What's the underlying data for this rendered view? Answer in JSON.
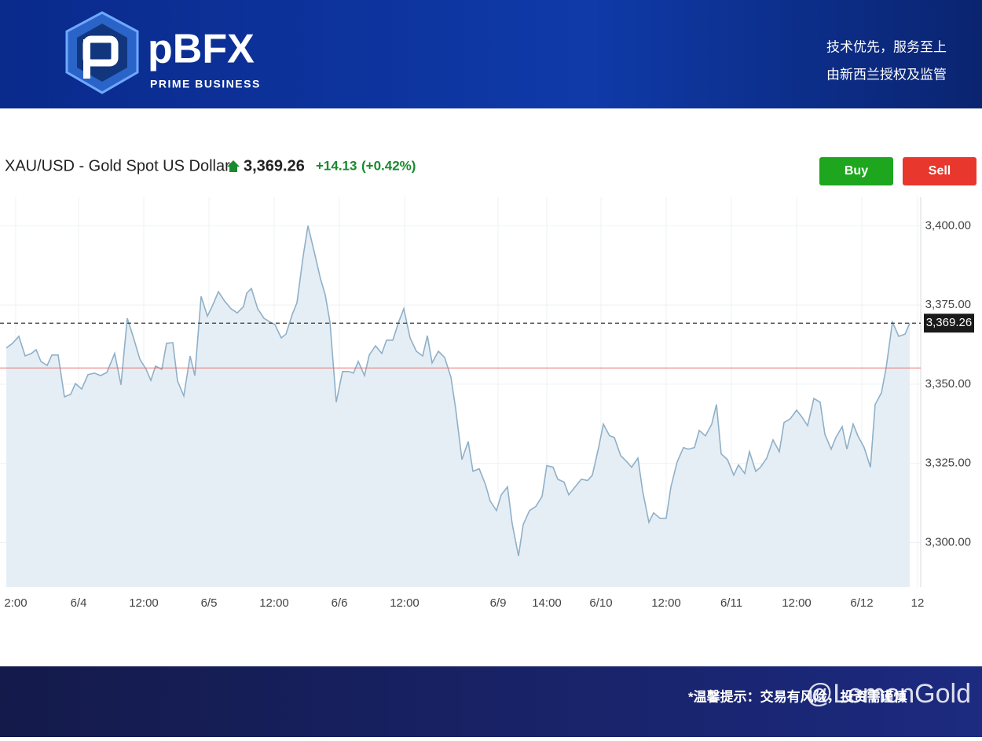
{
  "header": {
    "brand": "pBFX",
    "tagline": "PRIME BUSINESS",
    "slogan": "技术优先，服务至上",
    "regulation": "由新西兰授权及监管"
  },
  "instrument": {
    "name": "XAU/USD - Gold Spot US Dollar",
    "price": "3,369.26",
    "change": "+14.13",
    "change_pct": "(+0.42%)"
  },
  "actions": {
    "buy": "Buy",
    "sell": "Sell"
  },
  "footer": {
    "notice": "*温馨提示：交易有风险，投资需谨慎",
    "watermark": "@LemonGold"
  },
  "chart_data": {
    "type": "area",
    "color": "#8fb0c8",
    "fill": "#e6eef5",
    "x": [
      8,
      16,
      24,
      32,
      40,
      46,
      52,
      60,
      66,
      74,
      82,
      90,
      96,
      104,
      112,
      120,
      128,
      136,
      146,
      154,
      162,
      170,
      178,
      186,
      192,
      198,
      206,
      212,
      220,
      226,
      234,
      242,
      248,
      256,
      264,
      270,
      278,
      286,
      294,
      302,
      310,
      314,
      320,
      328,
      336,
      344,
      350,
      358,
      364,
      372,
      378,
      386,
      392,
      400,
      408,
      414,
      420,
      428,
      436,
      444,
      450,
      456,
      464,
      470,
      478,
      486,
      492,
      500,
      508,
      514,
      522,
      530,
      538,
      544,
      550,
      558,
      566,
      574,
      580,
      588,
      596,
      602,
      610,
      618,
      624,
      632,
      638,
      646,
      652,
      660,
      666,
      674,
      682,
      690,
      696,
      704,
      710,
      718,
      724,
      732,
      740,
      748,
      754,
      762,
      768,
      776,
      782,
      790,
      798,
      804,
      812,
      818,
      826,
      832,
      840,
      848,
      854,
      862,
      870,
      876,
      884,
      890,
      898,
      906,
      912,
      918,
      926,
      934,
      940,
      948,
      954,
      962,
      968,
      976,
      984,
      992,
      998,
      1006,
      1014,
      1020,
      1028,
      1036,
      1044,
      1050,
      1058,
      1064,
      1072,
      1078,
      1086,
      1092,
      1100,
      1108,
      1114,
      1122,
      1128,
      1136,
      1144,
      1152,
      1158
    ],
    "values": [
      3361.4,
      3362.9,
      3365.1,
      3358.9,
      3359.7,
      3360.9,
      3357.2,
      3355.9,
      3359.2,
      3359.2,
      3346.0,
      3346.8,
      3350.2,
      3348.5,
      3353.0,
      3353.5,
      3352.7,
      3353.7,
      3359.7,
      3349.8,
      3370.8,
      3364.6,
      3357.9,
      3354.7,
      3351.2,
      3355.7,
      3354.7,
      3362.9,
      3363.1,
      3351.0,
      3346.3,
      3358.9,
      3352.7,
      3377.7,
      3371.5,
      3374.5,
      3379.2,
      3376.2,
      3373.8,
      3372.5,
      3374.5,
      3378.7,
      3380.2,
      3373.8,
      3370.8,
      3369.6,
      3368.8,
      3364.6,
      3365.8,
      3372.0,
      3375.7,
      3390.6,
      3400.0,
      3391.8,
      3383.2,
      3378.2,
      3369.6,
      3344.3,
      3354.0,
      3354.0,
      3353.5,
      3357.2,
      3352.7,
      3359.2,
      3362.1,
      3359.7,
      3363.9,
      3363.9,
      3370.0,
      3373.8,
      3364.6,
      3360.4,
      3358.9,
      3365.3,
      3356.7,
      3360.4,
      3358.4,
      3352.2,
      3342.3,
      3326.2,
      3331.9,
      3322.5,
      3323.3,
      3318.3,
      3313.1,
      3310.1,
      3315.1,
      3317.6,
      3305.9,
      3295.8,
      3305.7,
      3310.1,
      3311.4,
      3314.6,
      3324.3,
      3323.8,
      3320.0,
      3319.1,
      3315.1,
      3317.6,
      3320.0,
      3319.6,
      3321.3,
      3330.0,
      3337.4,
      3333.7,
      3333.2,
      3327.5,
      3325.5,
      3323.8,
      3326.7,
      3316.3,
      3306.4,
      3309.4,
      3307.7,
      3307.7,
      3317.6,
      3325.5,
      3330.0,
      3329.5,
      3330.0,
      3335.4,
      3333.7,
      3337.4,
      3343.6,
      3328.0,
      3326.2,
      3321.3,
      3324.5,
      3321.8,
      3328.7,
      3322.5,
      3323.8,
      3326.7,
      3332.4,
      3328.7,
      3337.9,
      3339.1,
      3341.8,
      3339.9,
      3336.9,
      3345.5,
      3344.3,
      3334.2,
      3329.5,
      3333.2,
      3336.6,
      3329.5,
      3337.4,
      3333.7,
      3330.0,
      3323.8,
      3343.6,
      3347.3,
      3355.2,
      3369.6,
      3365.1,
      3365.8,
      3369.26
    ],
    "xlim": [
      0,
      1175
    ],
    "xticks": [
      {
        "value": 20,
        "label": "2:00"
      },
      {
        "value": 100,
        "label": "6/4"
      },
      {
        "value": 183,
        "label": "12:00"
      },
      {
        "value": 266,
        "label": "6/5"
      },
      {
        "value": 349,
        "label": "12:00"
      },
      {
        "value": 432,
        "label": "6/6"
      },
      {
        "value": 515,
        "label": "12:00"
      },
      {
        "value": 634,
        "label": "6/9"
      },
      {
        "value": 696,
        "label": "14:00"
      },
      {
        "value": 765,
        "label": "6/10"
      },
      {
        "value": 848,
        "label": "12:00"
      },
      {
        "value": 931,
        "label": "6/11"
      },
      {
        "value": 1014,
        "label": "12:00"
      },
      {
        "value": 1097,
        "label": "6/12"
      },
      {
        "value": 1168,
        "label": "12"
      }
    ],
    "ylim": [
      3286,
      3409
    ],
    "yticks": [
      {
        "value": 3300,
        "label": "3,300.00"
      },
      {
        "value": 3325,
        "label": "3,325.00"
      },
      {
        "value": 3350,
        "label": "3,350.00"
      },
      {
        "value": 3375,
        "label": "3,375.00"
      },
      {
        "value": 3400,
        "label": "3,400.00"
      }
    ],
    "current_price": {
      "value": 3369.26,
      "label": "3,369.26"
    },
    "previous_close": 3355.13,
    "grid": true
  }
}
